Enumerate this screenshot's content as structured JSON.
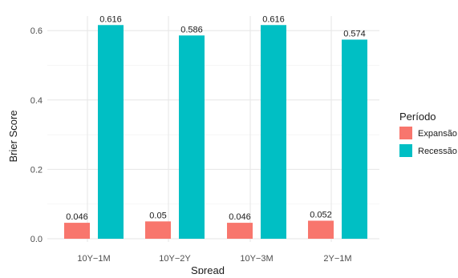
{
  "chart_data": {
    "type": "bar",
    "title": "",
    "xlabel": "Spread",
    "ylabel": "Brier Score",
    "categories": [
      "10Y−1M",
      "10Y−2Y",
      "10Y−3M",
      "2Y−1M"
    ],
    "series": [
      {
        "name": "Expansão",
        "color": "#F8766D",
        "values": [
          0.046,
          0.05,
          0.046,
          0.052
        ],
        "labels": [
          "0.046",
          "0.05",
          "0.046",
          "0.052"
        ]
      },
      {
        "name": "Recessão",
        "color": "#00BFC4",
        "values": [
          0.616,
          0.586,
          0.616,
          0.574
        ],
        "labels": [
          "0.616",
          "0.586",
          "0.616",
          "0.574"
        ]
      }
    ],
    "ylim": [
      0,
      0.63
    ],
    "yticks": [
      0.0,
      0.2,
      0.4,
      0.6
    ],
    "ytick_labels": [
      "0.0",
      "0.2",
      "0.4",
      "0.6"
    ],
    "grid": true,
    "legend": {
      "title": "Período",
      "position": "right"
    }
  }
}
